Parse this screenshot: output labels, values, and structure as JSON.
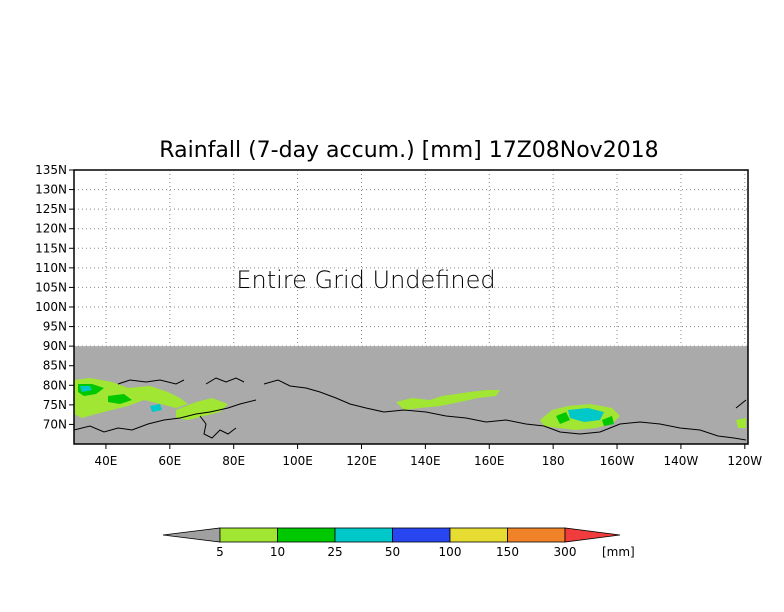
{
  "chart_data": {
    "type": "heatmap",
    "title": "Rainfall (7-day accum.) [mm] 17Z08Nov2018",
    "annotation": "Entire Grid Undefined",
    "x_ticks": [
      "40E",
      "60E",
      "80E",
      "100E",
      "120E",
      "140E",
      "160E",
      "180",
      "160W",
      "140W",
      "120W"
    ],
    "x_tick_lon": [
      40,
      60,
      80,
      100,
      120,
      140,
      160,
      180,
      200,
      220,
      240
    ],
    "xlim": [
      30,
      241
    ],
    "y_ticks": [
      "70N",
      "75N",
      "80N",
      "85N",
      "90N",
      "95N",
      "100N",
      "105N",
      "110N",
      "115N",
      "120N",
      "125N",
      "130N",
      "135N"
    ],
    "y_tick_lat": [
      70,
      75,
      80,
      85,
      90,
      95,
      100,
      105,
      110,
      115,
      120,
      125,
      130,
      135
    ],
    "ylim": [
      65,
      135
    ],
    "grid": true,
    "undefined_fill_below_lat": 90,
    "colorbar": {
      "bounds": [
        "5",
        "10",
        "25",
        "50",
        "100",
        "150",
        "300"
      ],
      "unit": "[mm]",
      "colors": [
        "#a0a0a0",
        "#a0e632",
        "#00c800",
        "#00c8c8",
        "#2846f0",
        "#e6dc32",
        "#f08228",
        "#f03c3c"
      ]
    }
  }
}
